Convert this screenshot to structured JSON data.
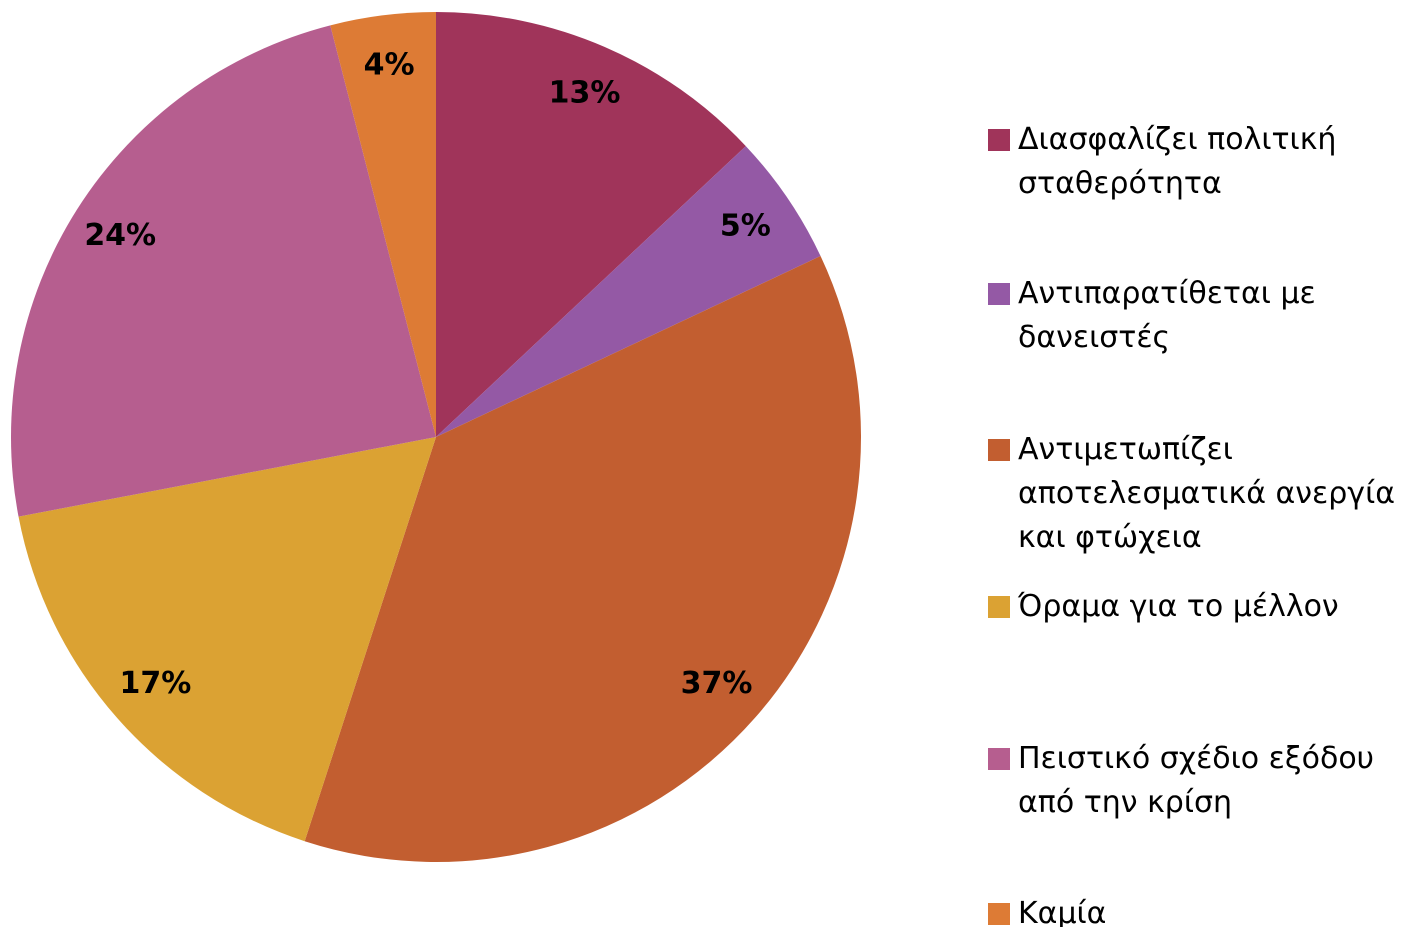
{
  "chart_data": {
    "type": "pie",
    "categories": [
      "Διασφαλίζει πολιτική σταθερότητα",
      "Αντιπαρατίθεται με δανειστές",
      "Αντιμετωπίζει αποτελεσματικά ανεργία και φτώχεια",
      "Όραμα για το μέλλον",
      "Πειστικό σχέδιο εξόδου από την κρίση",
      "Καμία"
    ],
    "values": [
      13,
      5,
      37,
      17,
      24,
      4
    ],
    "value_labels": [
      "13%",
      "5%",
      "37%",
      "17%",
      "24%",
      "4%"
    ],
    "colors": [
      "#a0345a",
      "#9459a5",
      "#c25e30",
      "#dba233",
      "#b65e8f",
      "#dd7b35"
    ],
    "legend": "right"
  }
}
